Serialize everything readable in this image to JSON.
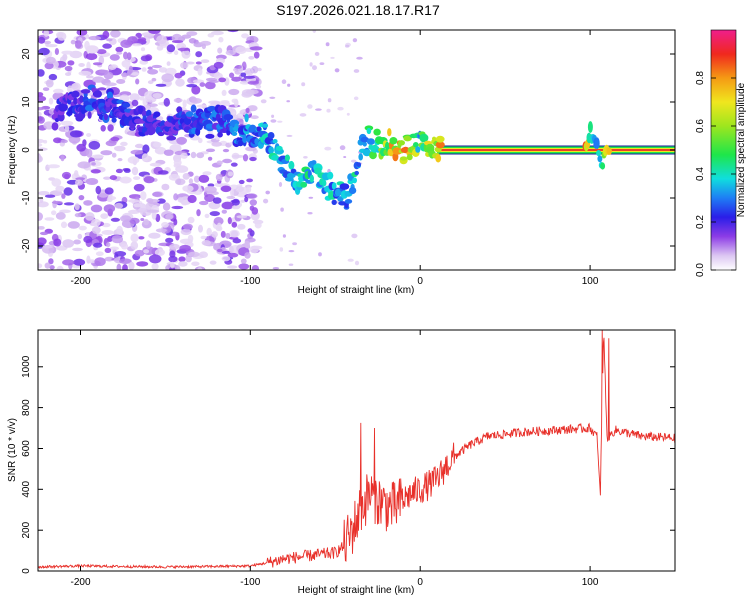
{
  "title": "S197.2026.021.18.17.R17",
  "chart_data": [
    {
      "type": "heatmap",
      "xlabel": "Height of straight line (km)",
      "ylabel": "Frequency (Hz)",
      "xlim": [
        -225,
        150
      ],
      "ylim": [
        -25,
        25
      ],
      "xticks": [
        -200,
        -100,
        0,
        100
      ],
      "yticks": [
        -20,
        -10,
        0,
        10,
        20
      ],
      "colorbar": {
        "label": "Normalized spectral amplitude",
        "range": [
          0,
          1
        ],
        "ticks": [
          "0.0",
          "0.2",
          "0.4",
          "0.6",
          "0.8"
        ],
        "tick_values": [
          0,
          0.2,
          0.4,
          0.6,
          0.8
        ]
      },
      "ridge": {
        "x": [
          -210,
          -195,
          -180,
          -165,
          -150,
          -135,
          -120,
          -110,
          -100,
          -92,
          -85,
          -78,
          -70,
          -62,
          -55,
          -48,
          -42,
          -38,
          -35,
          -30,
          -22,
          -15,
          -5,
          0,
          5,
          10,
          30,
          60,
          90,
          98,
          100,
          103,
          107,
          110,
          130,
          150
        ],
        "f": [
          8,
          10,
          9,
          6,
          5,
          6,
          6,
          5,
          4,
          3,
          0,
          -4,
          -6,
          -5,
          -8,
          -9,
          -10,
          -4,
          0,
          2,
          1,
          0,
          1,
          2,
          1,
          0,
          0,
          0,
          0,
          0,
          4,
          2,
          -4,
          0,
          0,
          0
        ],
        "amplitude": [
          0.25,
          0.28,
          0.28,
          0.25,
          0.25,
          0.3,
          0.3,
          0.32,
          0.35,
          0.4,
          0.42,
          0.4,
          0.45,
          0.45,
          0.42,
          0.4,
          0.4,
          0.45,
          0.45,
          0.5,
          0.6,
          0.9,
          0.9,
          0.5,
          0.75,
          0.95,
          0.95,
          0.95,
          0.95,
          0.9,
          0.45,
          0.4,
          0.4,
          0.9,
          0.95,
          0.95
        ]
      }
    },
    {
      "type": "line",
      "xlabel": "Height of straight line (km)",
      "ylabel": "SNR (10 * v/v)",
      "xlim": [
        -225,
        150
      ],
      "ylim": [
        0,
        1180
      ],
      "xticks": [
        -200,
        -100,
        0,
        100
      ],
      "yticks": [
        0,
        200,
        400,
        600,
        800,
        1000
      ],
      "color": "#e8302a",
      "series": [
        {
          "name": "SNR",
          "x": [
            -225,
            -200,
            -175,
            -150,
            -125,
            -100,
            -90,
            -80,
            -70,
            -60,
            -50,
            -45,
            -40,
            -35,
            -30,
            -25,
            -20,
            -15,
            -10,
            -5,
            0,
            5,
            10,
            15,
            20,
            30,
            40,
            50,
            60,
            80,
            100,
            104,
            106,
            108,
            110,
            115,
            130,
            150
          ],
          "y": [
            20,
            25,
            22,
            20,
            22,
            25,
            40,
            60,
            70,
            80,
            90,
            120,
            200,
            300,
            380,
            350,
            320,
            310,
            350,
            380,
            400,
            420,
            450,
            510,
            560,
            620,
            660,
            670,
            680,
            690,
            700,
            660,
            390,
            1180,
            650,
            690,
            660,
            650
          ]
        }
      ],
      "spikes": [
        {
          "x": -35,
          "y": 725
        },
        {
          "x": -27,
          "y": 700
        },
        {
          "x": 107,
          "y": 1180
        },
        {
          "x": 111,
          "y": 1140
        },
        {
          "x": 106,
          "y": 370
        }
      ]
    }
  ]
}
